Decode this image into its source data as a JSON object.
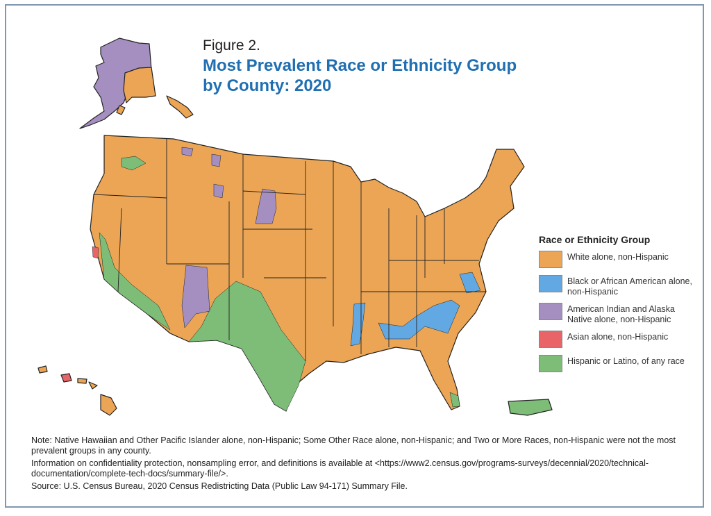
{
  "figure_label": "Figure 2.",
  "title_line1": "Most Prevalent Race or Ethnicity Group",
  "title_line2": "by County: 2020",
  "legend": {
    "title": "Race or Ethnicity Group",
    "items": [
      {
        "label": "White alone, non-Hispanic",
        "color": "#eba555"
      },
      {
        "label": "Black or African American alone, non-Hispanic",
        "color": "#62a8e2"
      },
      {
        "label": "American Indian and Alaska Native alone, non-Hispanic",
        "color": "#a48fc0"
      },
      {
        "label": "Asian alone, non-Hispanic",
        "color": "#e86467"
      },
      {
        "label": "Hispanic or Latino, of any race",
        "color": "#7dbd78"
      }
    ]
  },
  "notes": {
    "note": "Note: Native Hawaiian and Other Pacific Islander alone, non-Hispanic; Some Other Race alone, non-Hispanic; and Two or More Races, non-Hispanic were not the most prevalent groups in any county.",
    "info": "Information on confidentiality protection, nonsampling error, and definitions is available at <https://www2.census.gov/programs-surveys/decennial/2020/technical-documentation/complete-tech-docs/summary-file/>.",
    "source": "Source: U.S. Census Bureau, 2020 Census Redistricting Data (Public Law 94-171) Summary File."
  },
  "frame_color": "#7f98ad",
  "title_color": "#1f6fb2"
}
